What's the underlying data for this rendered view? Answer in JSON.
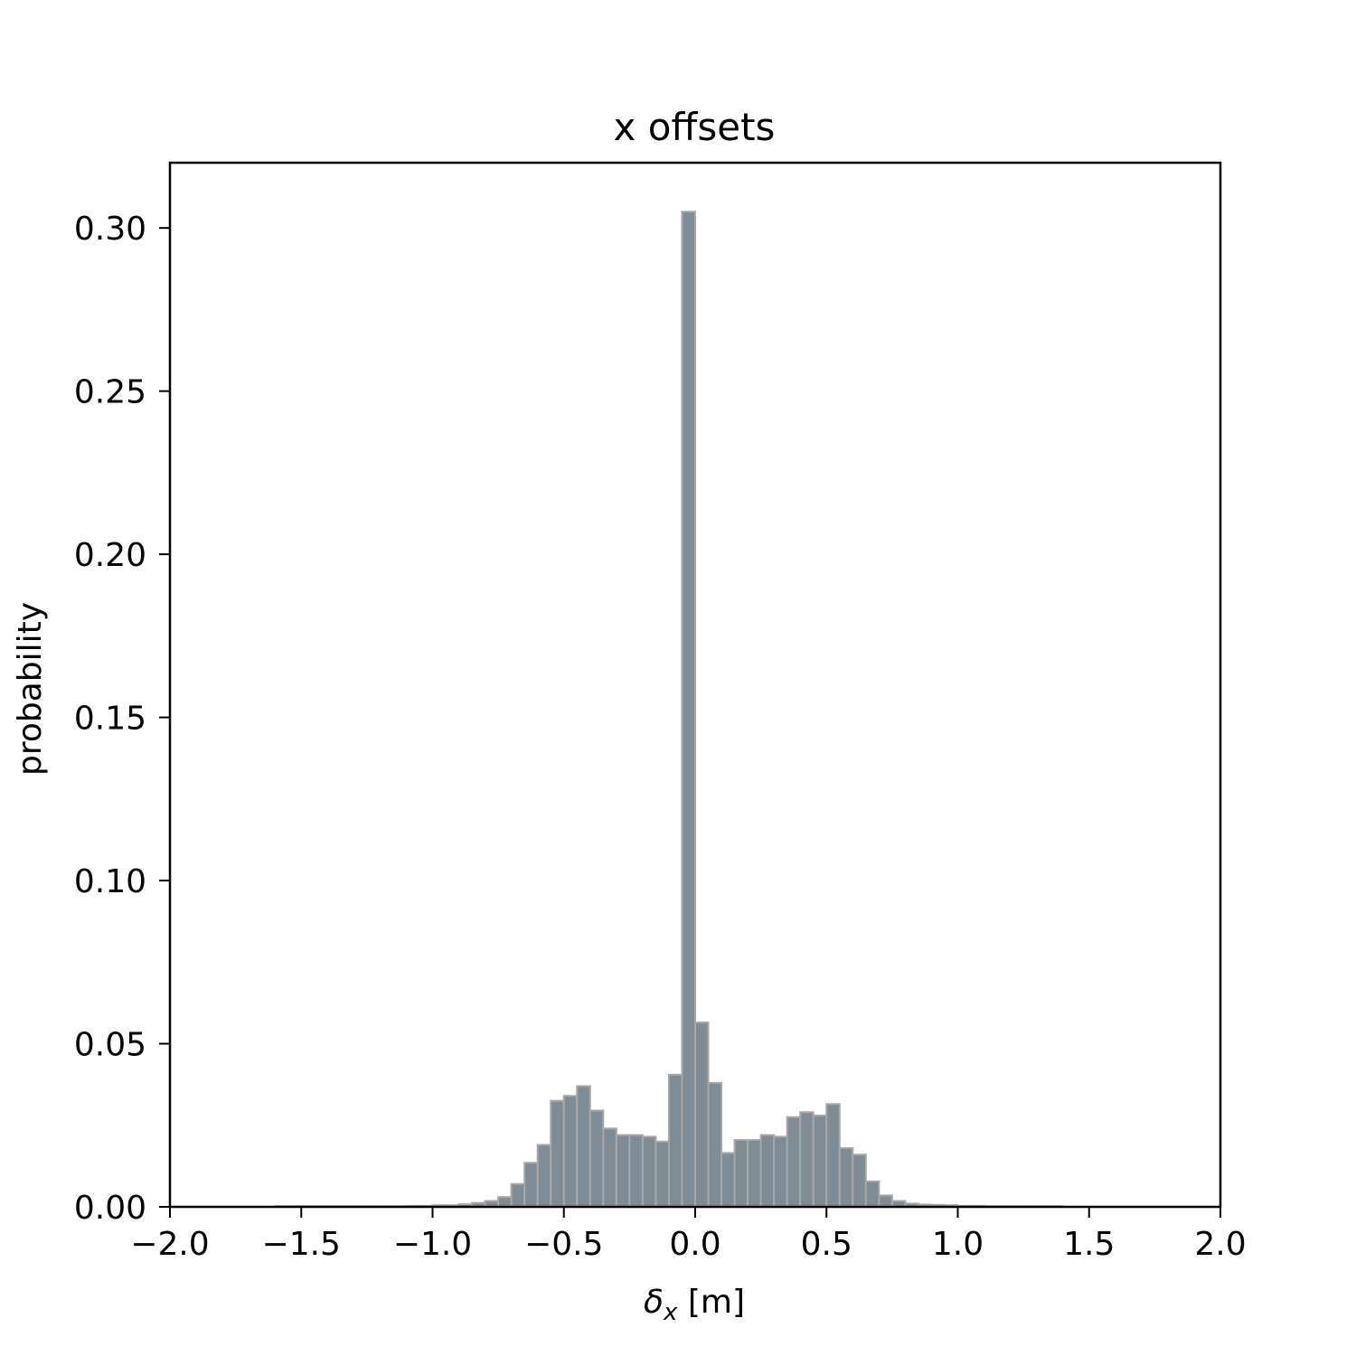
{
  "chart_data": {
    "type": "bar",
    "title": "x offsets",
    "xlabel": "δx [m]",
    "xlabel_main": "δ",
    "xlabel_sub": "x",
    "xlabel_unit": " [m]",
    "ylabel": "probability",
    "xlim": [
      -2.0,
      2.0
    ],
    "ylim": [
      0.0,
      0.32
    ],
    "xticks": [
      -2.0,
      -1.5,
      -1.0,
      -0.5,
      0.0,
      0.5,
      1.0,
      1.5,
      2.0
    ],
    "xtick_labels": [
      "−2.0",
      "−1.5",
      "−1.0",
      "−0.5",
      "0.0",
      "0.5",
      "1.0",
      "1.5",
      "2.0"
    ],
    "yticks": [
      0.0,
      0.05,
      0.1,
      0.15,
      0.2,
      0.25,
      0.3
    ],
    "ytick_labels": [
      "0.00",
      "0.05",
      "0.10",
      "0.15",
      "0.20",
      "0.25",
      "0.30"
    ],
    "grid": false,
    "bar_color": "#7f8c95",
    "bar_edge_color": "#a8a8a8",
    "bin_width": 0.05,
    "bin_left_edges": [
      -1.6,
      -1.55,
      -1.5,
      -1.45,
      -1.4,
      -1.35,
      -1.3,
      -1.25,
      -1.2,
      -1.15,
      -1.1,
      -1.05,
      -1.0,
      -0.95,
      -0.9,
      -0.85,
      -0.8,
      -0.75,
      -0.7,
      -0.65,
      -0.6,
      -0.55,
      -0.5,
      -0.45,
      -0.4,
      -0.35,
      -0.3,
      -0.25,
      -0.2,
      -0.15,
      -0.1,
      -0.05,
      0.0,
      0.05,
      0.1,
      0.15,
      0.2,
      0.25,
      0.3,
      0.35,
      0.4,
      0.45,
      0.5,
      0.55,
      0.6,
      0.65,
      0.7,
      0.75,
      0.8,
      0.85,
      0.9,
      0.95,
      1.0,
      1.05,
      1.1,
      1.15,
      1.2,
      1.25,
      1.3,
      1.35
    ],
    "values": [
      0.0002,
      0.0002,
      0.0002,
      0.0002,
      0.0002,
      0.0002,
      0.0002,
      0.0002,
      0.0002,
      0.0002,
      0.0003,
      0.0003,
      0.0005,
      0.0005,
      0.0008,
      0.0012,
      0.0018,
      0.003,
      0.007,
      0.0135,
      0.019,
      0.0325,
      0.034,
      0.037,
      0.0295,
      0.024,
      0.022,
      0.022,
      0.0215,
      0.02,
      0.0405,
      0.305,
      0.0565,
      0.038,
      0.0165,
      0.0205,
      0.0205,
      0.022,
      0.0215,
      0.0275,
      0.029,
      0.028,
      0.0315,
      0.018,
      0.016,
      0.0078,
      0.0035,
      0.0018,
      0.001,
      0.0007,
      0.0006,
      0.0005,
      0.0003,
      0.0003,
      0.0002,
      0.0002,
      0.0002,
      0.0002,
      0.0002,
      0.0002
    ]
  }
}
